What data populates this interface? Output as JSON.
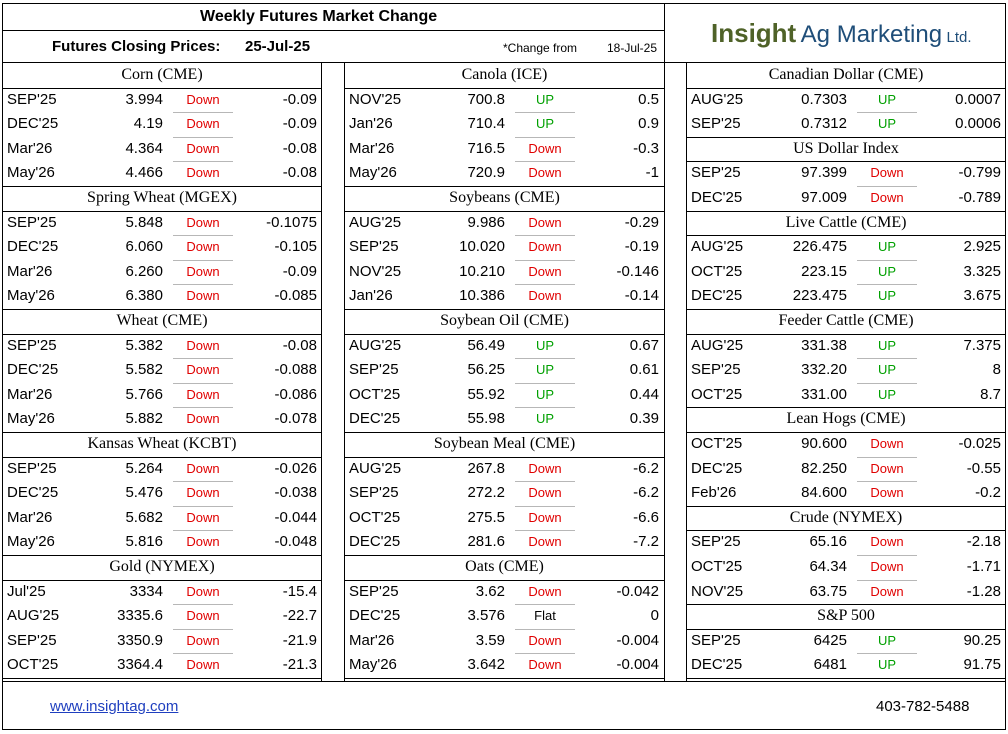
{
  "header": {
    "title": "Weekly Futures Market Change",
    "closing_label": "Futures Closing Prices:",
    "closing_date": "25-Jul-25",
    "change_from_label": "*Change from",
    "change_from_date": "18-Jul-25",
    "logo": {
      "part1": "Insight",
      "part2": "Ag Marketing",
      "part3": "Ltd."
    }
  },
  "colors": {
    "down": "#e00000",
    "up": "#00a000",
    "logo_green": "#4f6228",
    "logo_blue": "#1f4e79",
    "link": "#1f3fbf"
  },
  "columns": [
    {
      "sections": [
        {
          "name": "Corn (CME)",
          "rows": [
            {
              "month": "SEP'25",
              "price": "3.994",
              "dir": "Down",
              "change": "-0.09"
            },
            {
              "month": "DEC'25",
              "price": "4.19",
              "dir": "Down",
              "change": "-0.09"
            },
            {
              "month": "Mar'26",
              "price": "4.364",
              "dir": "Down",
              "change": "-0.08"
            },
            {
              "month": "May'26",
              "price": "4.466",
              "dir": "Down",
              "change": "-0.08"
            }
          ]
        },
        {
          "name": "Spring Wheat (MGEX)",
          "rows": [
            {
              "month": "SEP'25",
              "price": "5.848",
              "dir": "Down",
              "change": "-0.1075"
            },
            {
              "month": "DEC'25",
              "price": "6.060",
              "dir": "Down",
              "change": "-0.105"
            },
            {
              "month": "Mar'26",
              "price": "6.260",
              "dir": "Down",
              "change": "-0.09"
            },
            {
              "month": "May'26",
              "price": "6.380",
              "dir": "Down",
              "change": "-0.085"
            }
          ]
        },
        {
          "name": "Wheat (CME)",
          "rows": [
            {
              "month": "SEP'25",
              "price": "5.382",
              "dir": "Down",
              "change": "-0.08"
            },
            {
              "month": "DEC'25",
              "price": "5.582",
              "dir": "Down",
              "change": "-0.088"
            },
            {
              "month": "Mar'26",
              "price": "5.766",
              "dir": "Down",
              "change": "-0.086"
            },
            {
              "month": "May'26",
              "price": "5.882",
              "dir": "Down",
              "change": "-0.078"
            }
          ]
        },
        {
          "name": "Kansas Wheat (KCBT)",
          "rows": [
            {
              "month": "SEP'25",
              "price": "5.264",
              "dir": "Down",
              "change": "-0.026"
            },
            {
              "month": "DEC'25",
              "price": "5.476",
              "dir": "Down",
              "change": "-0.038"
            },
            {
              "month": "Mar'26",
              "price": "5.682",
              "dir": "Down",
              "change": "-0.044"
            },
            {
              "month": "May'26",
              "price": "5.816",
              "dir": "Down",
              "change": "-0.048"
            }
          ]
        },
        {
          "name": "Gold (NYMEX)",
          "rows": [
            {
              "month": "Jul'25",
              "price": "3334",
              "dir": "Down",
              "change": "-15.4"
            },
            {
              "month": "AUG'25",
              "price": "3335.6",
              "dir": "Down",
              "change": "-22.7"
            },
            {
              "month": "SEP'25",
              "price": "3350.9",
              "dir": "Down",
              "change": "-21.9"
            },
            {
              "month": "OCT'25",
              "price": "3364.4",
              "dir": "Down",
              "change": "-21.3"
            }
          ]
        }
      ]
    },
    {
      "sections": [
        {
          "name": "Canola (ICE)",
          "rows": [
            {
              "month": "NOV'25",
              "price": "700.8",
              "dir": "UP",
              "change": "0.5"
            },
            {
              "month": "Jan'26",
              "price": "710.4",
              "dir": "UP",
              "change": "0.9"
            },
            {
              "month": "Mar'26",
              "price": "716.5",
              "dir": "Down",
              "change": "-0.3"
            },
            {
              "month": "May'26",
              "price": "720.9",
              "dir": "Down",
              "change": "-1"
            }
          ]
        },
        {
          "name": "Soybeans (CME)",
          "rows": [
            {
              "month": "AUG'25",
              "price": "9.986",
              "dir": "Down",
              "change": "-0.29"
            },
            {
              "month": "SEP'25",
              "price": "10.020",
              "dir": "Down",
              "change": "-0.19"
            },
            {
              "month": "NOV'25",
              "price": "10.210",
              "dir": "Down",
              "change": "-0.146"
            },
            {
              "month": "Jan'26",
              "price": "10.386",
              "dir": "Down",
              "change": "-0.14"
            }
          ]
        },
        {
          "name": "Soybean Oil (CME)",
          "rows": [
            {
              "month": "AUG'25",
              "price": "56.49",
              "dir": "UP",
              "change": "0.67"
            },
            {
              "month": "SEP'25",
              "price": "56.25",
              "dir": "UP",
              "change": "0.61"
            },
            {
              "month": "OCT'25",
              "price": "55.92",
              "dir": "UP",
              "change": "0.44"
            },
            {
              "month": "DEC'25",
              "price": "55.98",
              "dir": "UP",
              "change": "0.39"
            }
          ]
        },
        {
          "name": "Soybean Meal (CME)",
          "rows": [
            {
              "month": "AUG'25",
              "price": "267.8",
              "dir": "Down",
              "change": "-6.2"
            },
            {
              "month": "SEP'25",
              "price": "272.2",
              "dir": "Down",
              "change": "-6.2"
            },
            {
              "month": "OCT'25",
              "price": "275.5",
              "dir": "Down",
              "change": "-6.6"
            },
            {
              "month": "DEC'25",
              "price": "281.6",
              "dir": "Down",
              "change": "-7.2"
            }
          ]
        },
        {
          "name": "Oats (CME)",
          "rows": [
            {
              "month": "SEP'25",
              "price": "3.62",
              "dir": "Down",
              "change": "-0.042"
            },
            {
              "month": "DEC'25",
              "price": "3.576",
              "dir": "Flat",
              "change": "0"
            },
            {
              "month": "Mar'26",
              "price": "3.59",
              "dir": "Down",
              "change": "-0.004"
            },
            {
              "month": "May'26",
              "price": "3.642",
              "dir": "Down",
              "change": "-0.004"
            }
          ]
        }
      ]
    },
    {
      "sections": [
        {
          "name": "Canadian Dollar (CME)",
          "rows": [
            {
              "month": "AUG'25",
              "price": "0.7303",
              "dir": "UP",
              "change": "0.0007"
            },
            {
              "month": "SEP'25",
              "price": "0.7312",
              "dir": "UP",
              "change": "0.0006"
            }
          ]
        },
        {
          "name": "US Dollar Index",
          "rows": [
            {
              "month": "SEP'25",
              "price": "97.399",
              "dir": "Down",
              "change": "-0.799"
            },
            {
              "month": "DEC'25",
              "price": "97.009",
              "dir": "Down",
              "change": "-0.789"
            }
          ]
        },
        {
          "name": "Live Cattle (CME)",
          "rows": [
            {
              "month": "AUG'25",
              "price": "226.475",
              "dir": "UP",
              "change": "2.925"
            },
            {
              "month": "OCT'25",
              "price": "223.15",
              "dir": "UP",
              "change": "3.325"
            },
            {
              "month": "DEC'25",
              "price": "223.475",
              "dir": "UP",
              "change": "3.675"
            }
          ]
        },
        {
          "name": "Feeder Cattle (CME)",
          "rows": [
            {
              "month": "AUG'25",
              "price": "331.38",
              "dir": "UP",
              "change": "7.375"
            },
            {
              "month": "SEP'25",
              "price": "332.20",
              "dir": "UP",
              "change": "8"
            },
            {
              "month": "OCT'25",
              "price": "331.00",
              "dir": "UP",
              "change": "8.7"
            }
          ]
        },
        {
          "name": "Lean Hogs (CME)",
          "rows": [
            {
              "month": "OCT'25",
              "price": "90.600",
              "dir": "Down",
              "change": "-0.025"
            },
            {
              "month": "DEC'25",
              "price": "82.250",
              "dir": "Down",
              "change": "-0.55"
            },
            {
              "month": "Feb'26",
              "price": "84.600",
              "dir": "Down",
              "change": "-0.2"
            }
          ]
        },
        {
          "name": "Crude (NYMEX)",
          "rows": [
            {
              "month": "SEP'25",
              "price": "65.16",
              "dir": "Down",
              "change": "-2.18"
            },
            {
              "month": "OCT'25",
              "price": "64.34",
              "dir": "Down",
              "change": "-1.71"
            },
            {
              "month": "NOV'25",
              "price": "63.75",
              "dir": "Down",
              "change": "-1.28"
            }
          ]
        },
        {
          "name": "S&P 500",
          "rows": [
            {
              "month": "SEP'25",
              "price": "6425",
              "dir": "UP",
              "change": "90.25"
            },
            {
              "month": "DEC'25",
              "price": "6481",
              "dir": "UP",
              "change": "91.75"
            }
          ]
        }
      ]
    }
  ],
  "footer": {
    "website": "www.insightag.com",
    "phone": "403-782-5488"
  }
}
